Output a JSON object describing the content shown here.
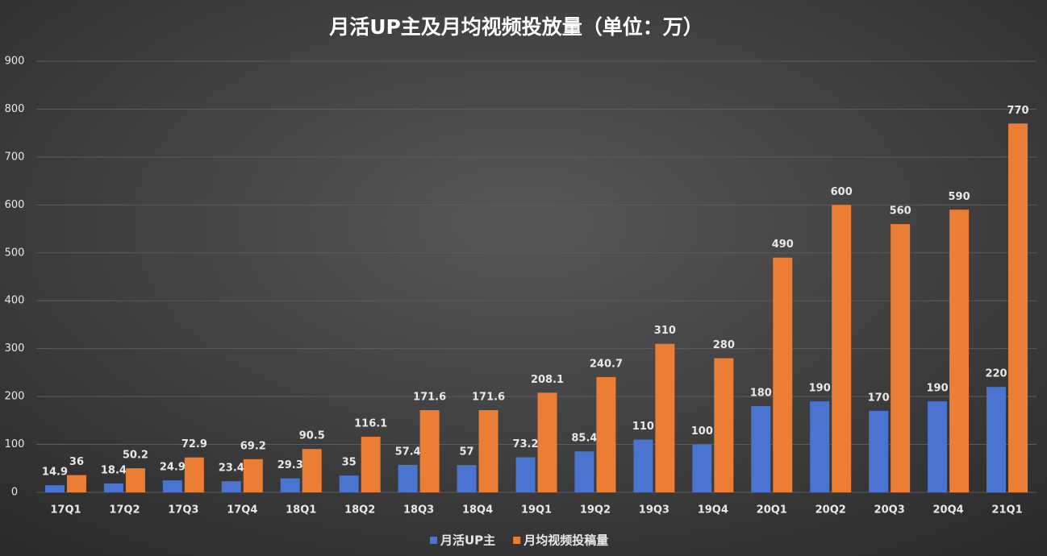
{
  "chart_data": {
    "type": "bar",
    "title": "月活UP主及月均视频投放量（单位：万）",
    "categories": [
      "17Q1",
      "17Q2",
      "17Q3",
      "17Q4",
      "18Q1",
      "18Q2",
      "18Q3",
      "18Q4",
      "19Q1",
      "19Q2",
      "19Q3",
      "19Q4",
      "20Q1",
      "20Q2",
      "20Q3",
      "20Q4",
      "21Q1"
    ],
    "series": [
      {
        "name": "月活UP主",
        "color": "#4a74d0",
        "values": [
          14.9,
          18.4,
          24.9,
          23.4,
          29.3,
          35,
          57.4,
          57,
          73.2,
          85.4,
          110,
          100,
          180,
          190,
          170,
          190,
          220
        ]
      },
      {
        "name": "月均视频投稿量",
        "color": "#ec7d34",
        "values": [
          36,
          50.2,
          72.9,
          69.2,
          90.5,
          116.1,
          171.6,
          171.6,
          208.1,
          240.7,
          310,
          280,
          490,
          600,
          560,
          590,
          770
        ]
      }
    ],
    "ylim": [
      0,
      900
    ],
    "yticks": [
      0,
      100,
      200,
      300,
      400,
      500,
      600,
      700,
      800,
      900
    ],
    "grid": true,
    "legend": "bottom"
  }
}
